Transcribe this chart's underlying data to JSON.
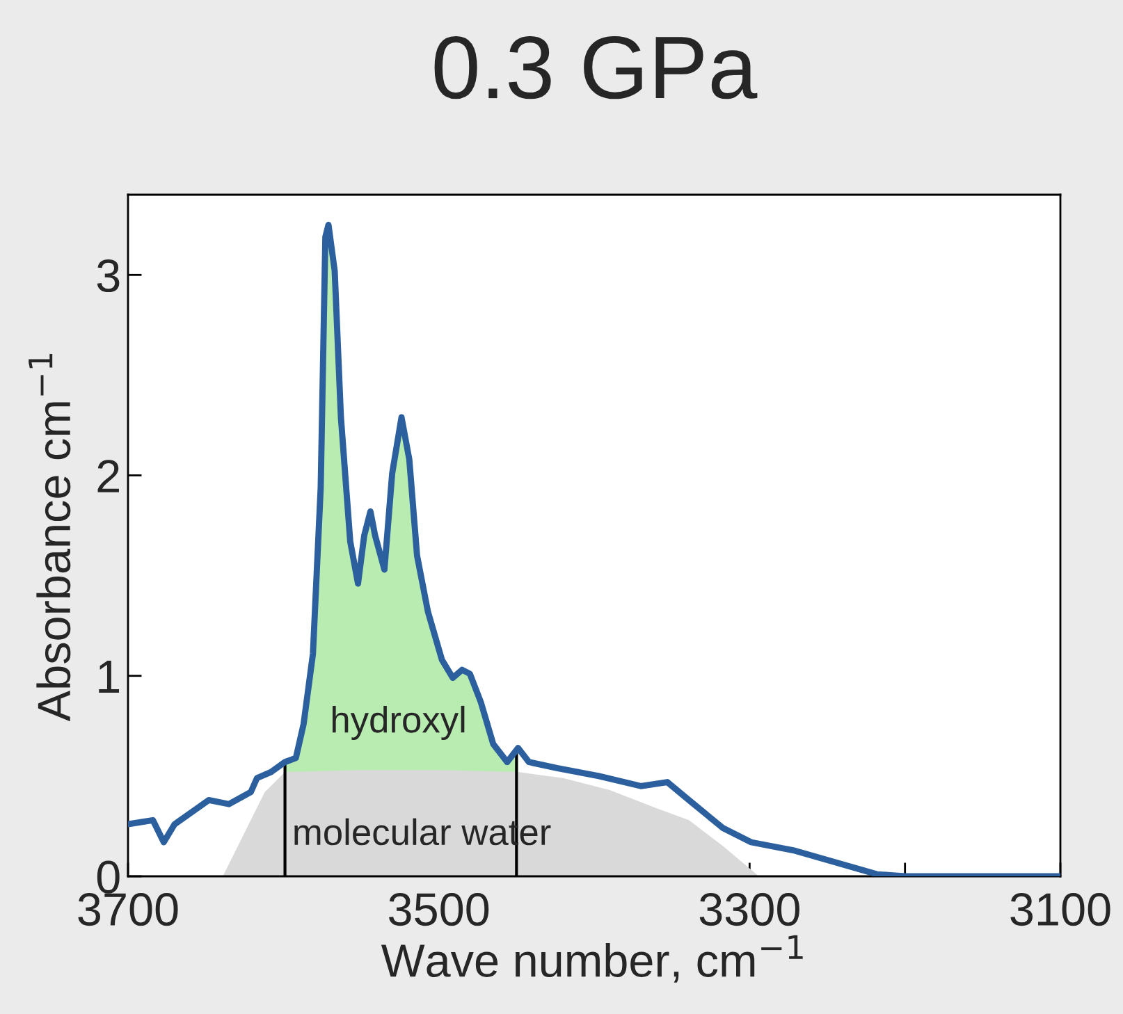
{
  "chart_data": {
    "type": "line",
    "title": "0.3 GPa",
    "xlabel": "Wave number, cm$^{−1}$",
    "ylabel": "Absorbance cm$^{−1}$",
    "xlim": [
      3700,
      3100
    ],
    "ylim": [
      0,
      3.4
    ],
    "xticks": [
      3700,
      {
        "value": 3600,
        "label": null
      },
      3500,
      {
        "value": 3400,
        "label": null
      },
      3300,
      {
        "value": 3200,
        "label": null
      },
      3100
    ],
    "yticks": [
      0,
      1,
      2,
      3
    ],
    "grid": false,
    "legend": false,
    "series": [
      {
        "type": "area",
        "color": "#b9ecb0",
        "x": [
          3599,
          3592,
          3587,
          3581,
          3576,
          3573,
          3571,
          3567,
          3563,
          3557,
          3552,
          3548,
          3544,
          3541,
          3535,
          3530,
          3524,
          3519,
          3514,
          3507,
          3498,
          3491,
          3485,
          3480,
          3473,
          3465,
          3456,
          3449
        ],
        "values": [
          0.57,
          0.59,
          0.76,
          1.11,
          1.94,
          3.19,
          3.25,
          3.02,
          2.29,
          1.67,
          1.46,
          1.7,
          1.82,
          1.7,
          1.53,
          2.01,
          2.29,
          2.08,
          1.6,
          1.32,
          1.08,
          0.99,
          1.03,
          1.01,
          0.87,
          0.66,
          0.57,
          0.64
        ]
      },
      {
        "type": "area",
        "color": "#d9d9d9",
        "x": [
          3639,
          3630,
          3621,
          3612,
          3599,
          3550,
          3500,
          3449,
          3420,
          3390,
          3360,
          3339,
          3317,
          3294
        ],
        "values": [
          0,
          0.14,
          0.28,
          0.42,
          0.52,
          0.53,
          0.53,
          0.52,
          0.49,
          0.43,
          0.34,
          0.28,
          0.15,
          0
        ]
      },
      {
        "type": "line",
        "color": "#000000",
        "x": [
          3599,
          3599
        ],
        "values": [
          0,
          0.57
        ]
      },
      {
        "type": "line",
        "color": "#000000",
        "x": [
          3450,
          3450
        ],
        "values": [
          0,
          0.63
        ]
      },
      {
        "color": "#2b5f9e",
        "x": [
          3700,
          3684,
          3677,
          3670,
          3648,
          3635,
          3621,
          3617,
          3608,
          3599,
          3592,
          3587,
          3581,
          3576,
          3573,
          3571,
          3567,
          3563,
          3557,
          3552,
          3548,
          3544,
          3541,
          3535,
          3530,
          3524,
          3519,
          3514,
          3507,
          3498,
          3491,
          3485,
          3480,
          3473,
          3465,
          3456,
          3449,
          3442,
          3424,
          3397,
          3370,
          3353,
          3339,
          3317,
          3299,
          3272,
          3245,
          3218,
          3200,
          3155,
          3100
        ],
        "values": [
          0.26,
          0.28,
          0.17,
          0.26,
          0.38,
          0.36,
          0.42,
          0.49,
          0.52,
          0.57,
          0.59,
          0.76,
          1.11,
          1.94,
          3.19,
          3.25,
          3.02,
          2.29,
          1.67,
          1.46,
          1.7,
          1.82,
          1.7,
          1.53,
          2.01,
          2.29,
          2.08,
          1.6,
          1.32,
          1.08,
          0.99,
          1.03,
          1.01,
          0.87,
          0.66,
          0.57,
          0.64,
          0.57,
          0.54,
          0.5,
          0.45,
          0.47,
          0.38,
          0.24,
          0.17,
          0.13,
          0.07,
          0.01,
          0,
          0,
          0
        ]
      }
    ],
    "annotations": [
      "hydroxyl",
      "molecular water"
    ]
  }
}
